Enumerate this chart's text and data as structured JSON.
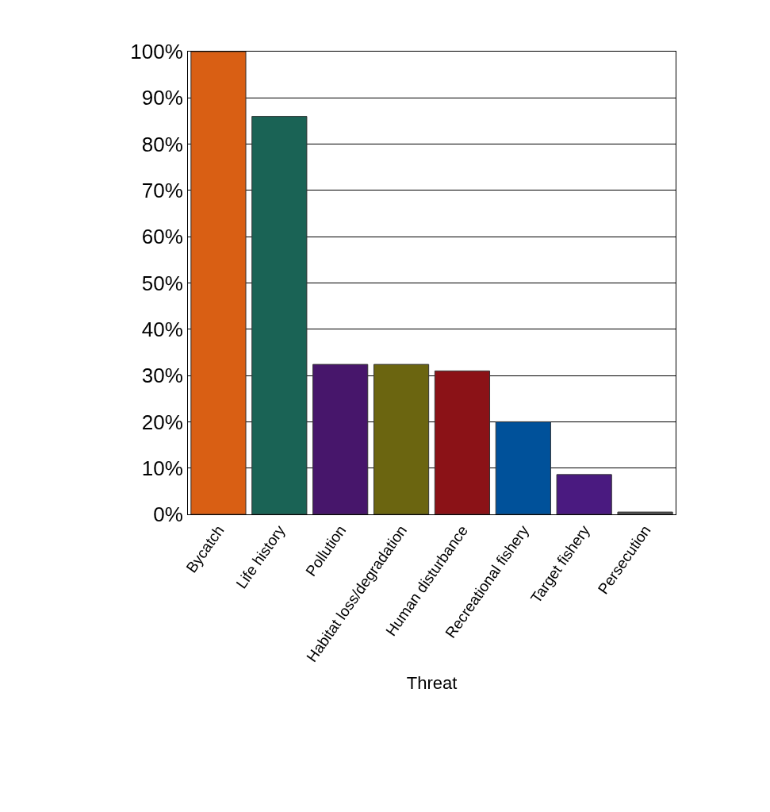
{
  "chart_data": {
    "type": "bar",
    "xlabel": "Threat",
    "categories": [
      "Bycatch",
      "Life history",
      "Pollution",
      "Habitat loss/degradation",
      "Human disturbance",
      "Recreational fishery",
      "Target fishery",
      "Persecution"
    ],
    "values": [
      100,
      86,
      32.4,
      32.4,
      31,
      20,
      8.6,
      0.5
    ],
    "colors": [
      "#d95f14",
      "#1a6355",
      "#47166b",
      "#6b6510",
      "#8b1217",
      "#00519a",
      "#4a1a80",
      "#555555"
    ],
    "ylim": [
      0,
      100
    ],
    "yticks": [
      {
        "value": 0,
        "label": "0%"
      },
      {
        "value": 10,
        "label": "10%"
      },
      {
        "value": 20,
        "label": "20%"
      },
      {
        "value": 30,
        "label": "30%"
      },
      {
        "value": 40,
        "label": "40%"
      },
      {
        "value": 50,
        "label": "50%"
      },
      {
        "value": 60,
        "label": "60%"
      },
      {
        "value": 70,
        "label": "70%"
      },
      {
        "value": 80,
        "label": "80%"
      },
      {
        "value": 90,
        "label": "90%"
      },
      {
        "value": 100,
        "label": "100%"
      }
    ],
    "grid": "y"
  }
}
